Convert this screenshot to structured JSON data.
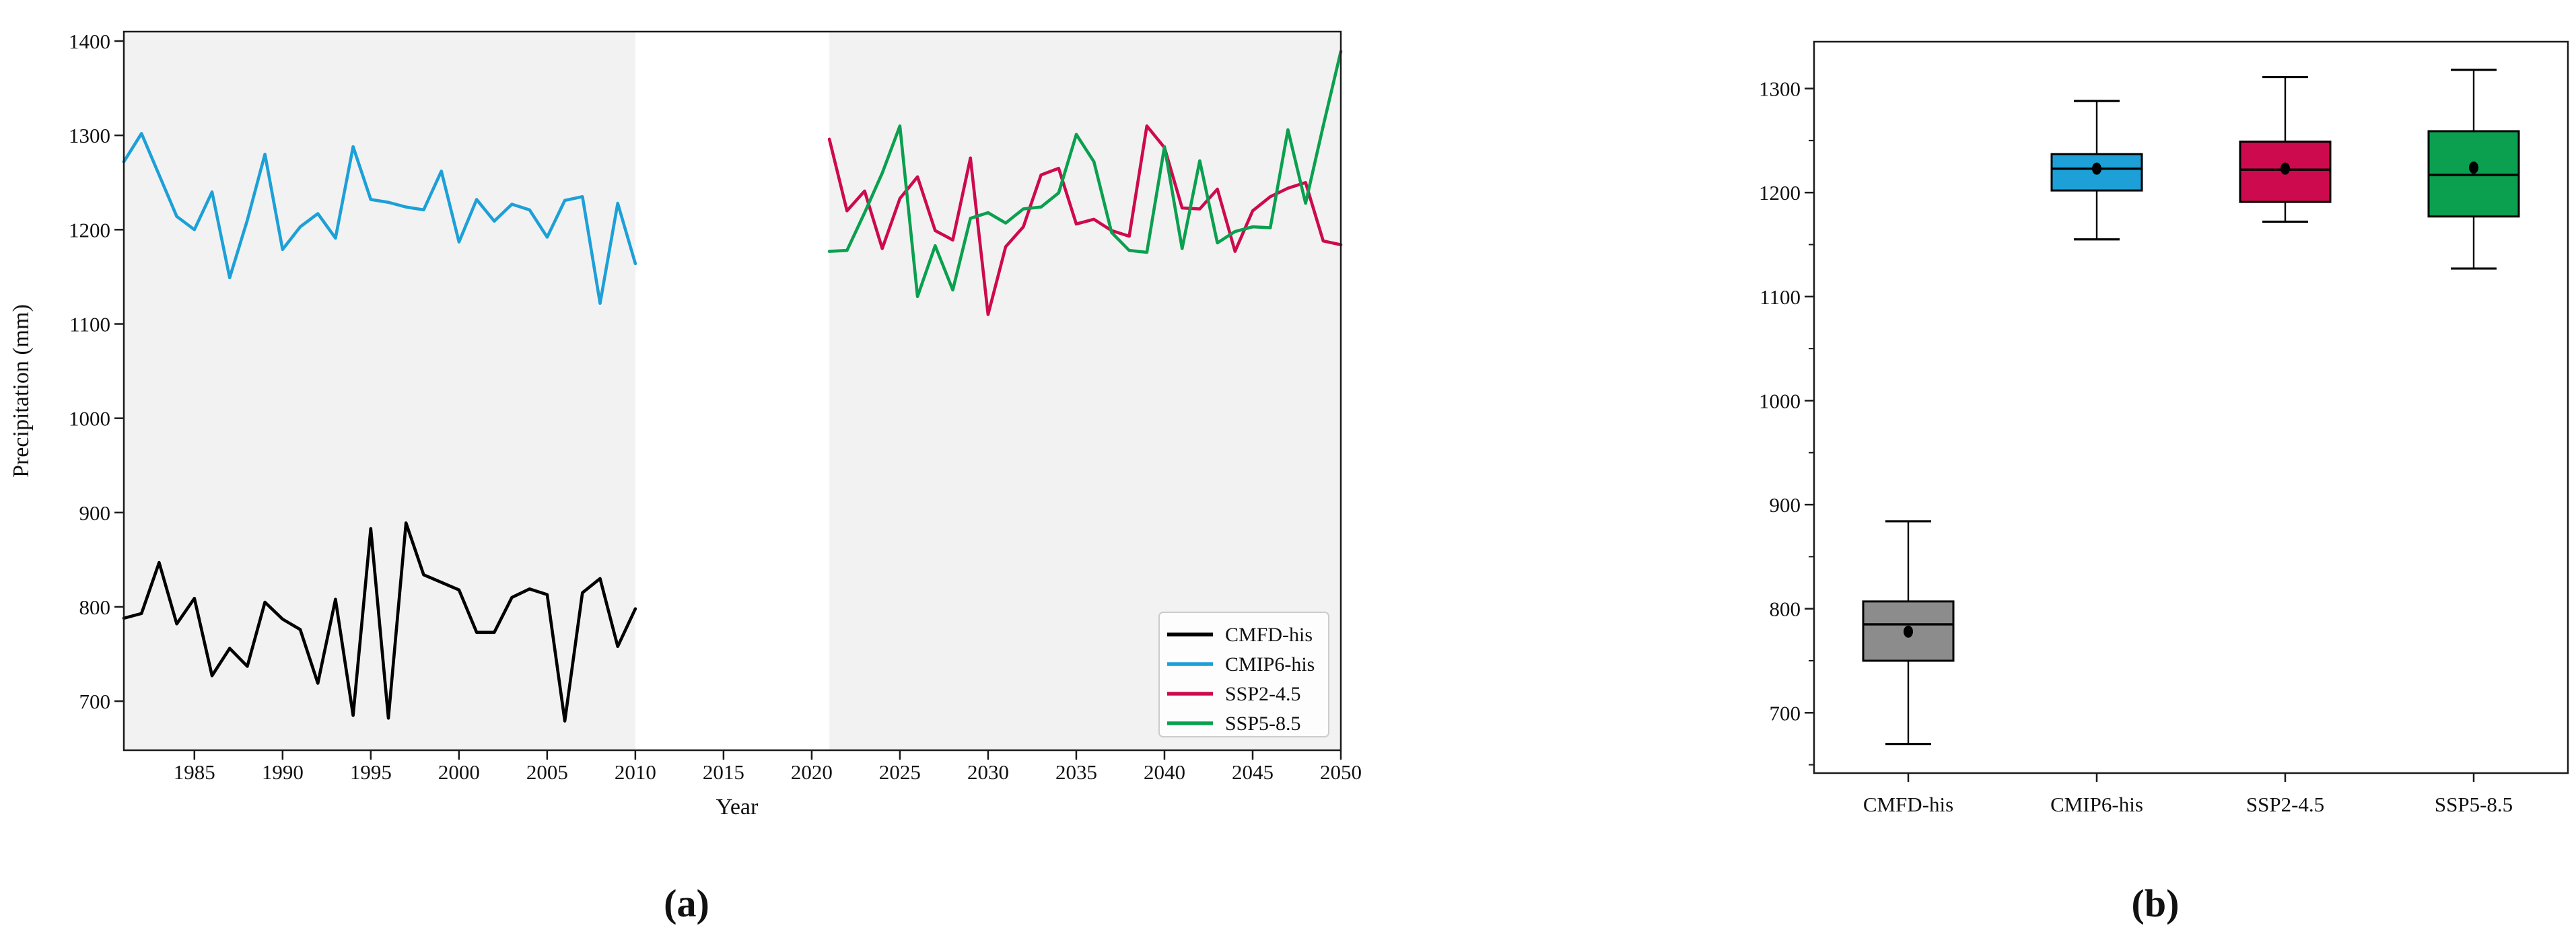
{
  "figure": {
    "captions": {
      "panel_a": "(a)",
      "panel_b": "(b)"
    }
  },
  "chart_data": [
    {
      "type": "line",
      "panel": "a",
      "title": "",
      "xlabel": "Year",
      "ylabel": "Precipitation (mm)",
      "xlim": [
        1981,
        2050
      ],
      "ylim": [
        648,
        1410
      ],
      "x_ticks": [
        1985,
        1990,
        1995,
        2000,
        2005,
        2010,
        2015,
        2020,
        2025,
        2030,
        2035,
        2040,
        2045,
        2050
      ],
      "y_ticks": [
        700,
        800,
        900,
        1000,
        1100,
        1200,
        1300,
        1400
      ],
      "grid": false,
      "legend_position": "lower right",
      "shaded_periods": [
        [
          1981,
          2010
        ],
        [
          2021,
          2050
        ]
      ],
      "shade_color": "#f3f2f2",
      "series": [
        {
          "name": "CMFD-his",
          "color": "#000000",
          "x_start": 1981,
          "values": [
            788,
            793,
            847,
            782,
            809,
            727,
            756,
            737,
            805,
            787,
            776,
            719,
            808,
            685,
            883,
            682,
            889,
            834,
            826,
            818,
            773,
            773,
            810,
            819,
            813,
            679,
            815,
            830,
            758,
            798
          ]
        },
        {
          "name": "CMIP6-his",
          "color": "#1da0d8",
          "x_start": 1981,
          "values": [
            1272,
            1302,
            1258,
            1214,
            1200,
            1240,
            1149,
            1210,
            1280,
            1179,
            1203,
            1217,
            1191,
            1288,
            1232,
            1229,
            1224,
            1221,
            1262,
            1187,
            1232,
            1209,
            1227,
            1221,
            1192,
            1231,
            1235,
            1122,
            1228,
            1164
          ]
        },
        {
          "name": "SSP2-4.5",
          "color": "#cd0a4e",
          "x_start": 2021,
          "values": [
            1296,
            1220,
            1241,
            1180,
            1233,
            1256,
            1199,
            1189,
            1276,
            1110,
            1182,
            1203,
            1258,
            1265,
            1206,
            1211,
            1199,
            1193,
            1310,
            1287,
            1223,
            1222,
            1243,
            1177,
            1220,
            1235,
            1244,
            1250,
            1188,
            1184
          ]
        },
        {
          "name": "SSP5-8.5",
          "color": "#0aa04f",
          "x_start": 2021,
          "values": [
            1177,
            1178,
            1218,
            1260,
            1310,
            1129,
            1183,
            1136,
            1212,
            1218,
            1207,
            1222,
            1224,
            1239,
            1301,
            1272,
            1197,
            1178,
            1176,
            1288,
            1180,
            1273,
            1186,
            1198,
            1203,
            1202,
            1306,
            1228,
            1310,
            1389
          ]
        }
      ]
    },
    {
      "type": "box",
      "panel": "b",
      "title": "",
      "xlabel": "",
      "ylabel": "",
      "ylim": [
        642,
        1345
      ],
      "y_ticks": [
        700,
        800,
        900,
        1000,
        1100,
        1200,
        1300
      ],
      "y_minor_ticks": [
        650,
        750,
        850,
        950,
        1050,
        1150,
        1250
      ],
      "grid": false,
      "categories": [
        "CMFD-his",
        "CMIP6-his",
        "SSP2-4.5",
        "SSP5-8.5"
      ],
      "boxes": [
        {
          "label": "CMFD-his",
          "color": "#8c8c8c",
          "whisker_low": 670,
          "q1": 750,
          "median": 785,
          "mean": 778,
          "q3": 807,
          "whisker_high": 884
        },
        {
          "label": "CMIP6-his",
          "color": "#1da0d8",
          "whisker_low": 1155,
          "q1": 1202,
          "median": 1223,
          "mean": 1223,
          "q3": 1237,
          "whisker_high": 1288
        },
        {
          "label": "SSP2-4.5",
          "color": "#cd0a4e",
          "whisker_low": 1172,
          "q1": 1191,
          "median": 1222,
          "mean": 1223,
          "q3": 1249,
          "whisker_high": 1311
        },
        {
          "label": "SSP5-8.5",
          "color": "#0aa04f",
          "whisker_low": 1127,
          "q1": 1177,
          "median": 1217,
          "mean": 1224,
          "q3": 1259,
          "whisker_high": 1318
        }
      ]
    }
  ]
}
